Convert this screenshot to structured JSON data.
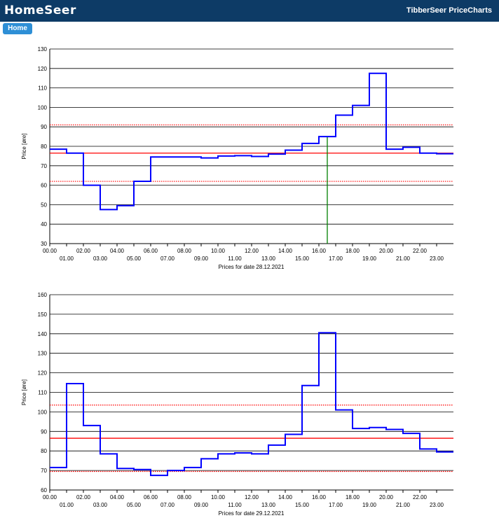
{
  "header": {
    "logo": "HomeSeer",
    "title": "TibberSeer PriceCharts"
  },
  "nav": {
    "home_label": "Home"
  },
  "colors": {
    "header_bg": "#0d3b66",
    "button_bg": "#2e8fd6",
    "price_line": "#0000ff",
    "average_line": "#ff0000",
    "current_time_line": "#008000",
    "grid": "#000000"
  },
  "chart_data": [
    {
      "type": "line",
      "step": true,
      "title": "",
      "xlabel": "Prices for date 28.12.2021",
      "ylabel": "Price [øre]",
      "ylim": [
        30,
        130
      ],
      "yticks": [
        30,
        40,
        50,
        60,
        70,
        80,
        90,
        100,
        110,
        120,
        130
      ],
      "xlim": [
        0,
        24
      ],
      "x_ticks_top": [
        "00.00",
        "02.00",
        "04.00",
        "06.00",
        "08.00",
        "10.00",
        "12.00",
        "14.00",
        "16.00",
        "18.00",
        "20.00",
        "22.00"
      ],
      "x_ticks_bottom": [
        "01.00",
        "03.00",
        "05.00",
        "07.00",
        "09.00",
        "11.00",
        "13.00",
        "15.00",
        "17.00",
        "19.00",
        "21.00",
        "23.00"
      ],
      "grid": "horizontal",
      "series": [
        {
          "values": [
            78.5,
            76.5,
            60,
            47.5,
            49.5,
            62,
            74.5,
            74.5,
            74.5,
            74,
            75,
            75.2,
            74.8,
            76,
            78,
            81.5,
            85,
            96,
            101,
            117.5,
            78.5,
            79.5,
            76.5,
            76.2
          ]
        }
      ],
      "reference_lines": {
        "average": 76.5,
        "upper": 91,
        "lower": 62
      },
      "current_time_hour": 16.5
    },
    {
      "type": "line",
      "step": true,
      "title": "",
      "xlabel": "Prices for date 29.12.2021",
      "ylabel": "Price [øre]",
      "ylim": [
        60,
        160
      ],
      "yticks": [
        60,
        70,
        80,
        90,
        100,
        110,
        120,
        130,
        140,
        150,
        160
      ],
      "xlim": [
        0,
        24
      ],
      "x_ticks_top": [
        "00.00",
        "02.00",
        "04.00",
        "06.00",
        "08.00",
        "10.00",
        "12.00",
        "14.00",
        "16.00",
        "18.00",
        "20.00",
        "22.00"
      ],
      "x_ticks_bottom": [
        "01.00",
        "03.00",
        "05.00",
        "07.00",
        "09.00",
        "11.00",
        "13.00",
        "15.00",
        "17.00",
        "19.00",
        "21.00",
        "23.00"
      ],
      "grid": "horizontal",
      "series": [
        {
          "values": [
            71.5,
            114.5,
            93,
            78.5,
            71,
            70.5,
            67.5,
            70,
            71.5,
            76,
            78.5,
            79,
            78.5,
            83,
            88.5,
            113.5,
            140.5,
            101,
            91.5,
            92,
            91,
            89,
            81,
            79.5
          ]
        }
      ],
      "reference_lines": {
        "average": 86.5,
        "upper": 103.5,
        "lower": 69.5
      }
    }
  ]
}
